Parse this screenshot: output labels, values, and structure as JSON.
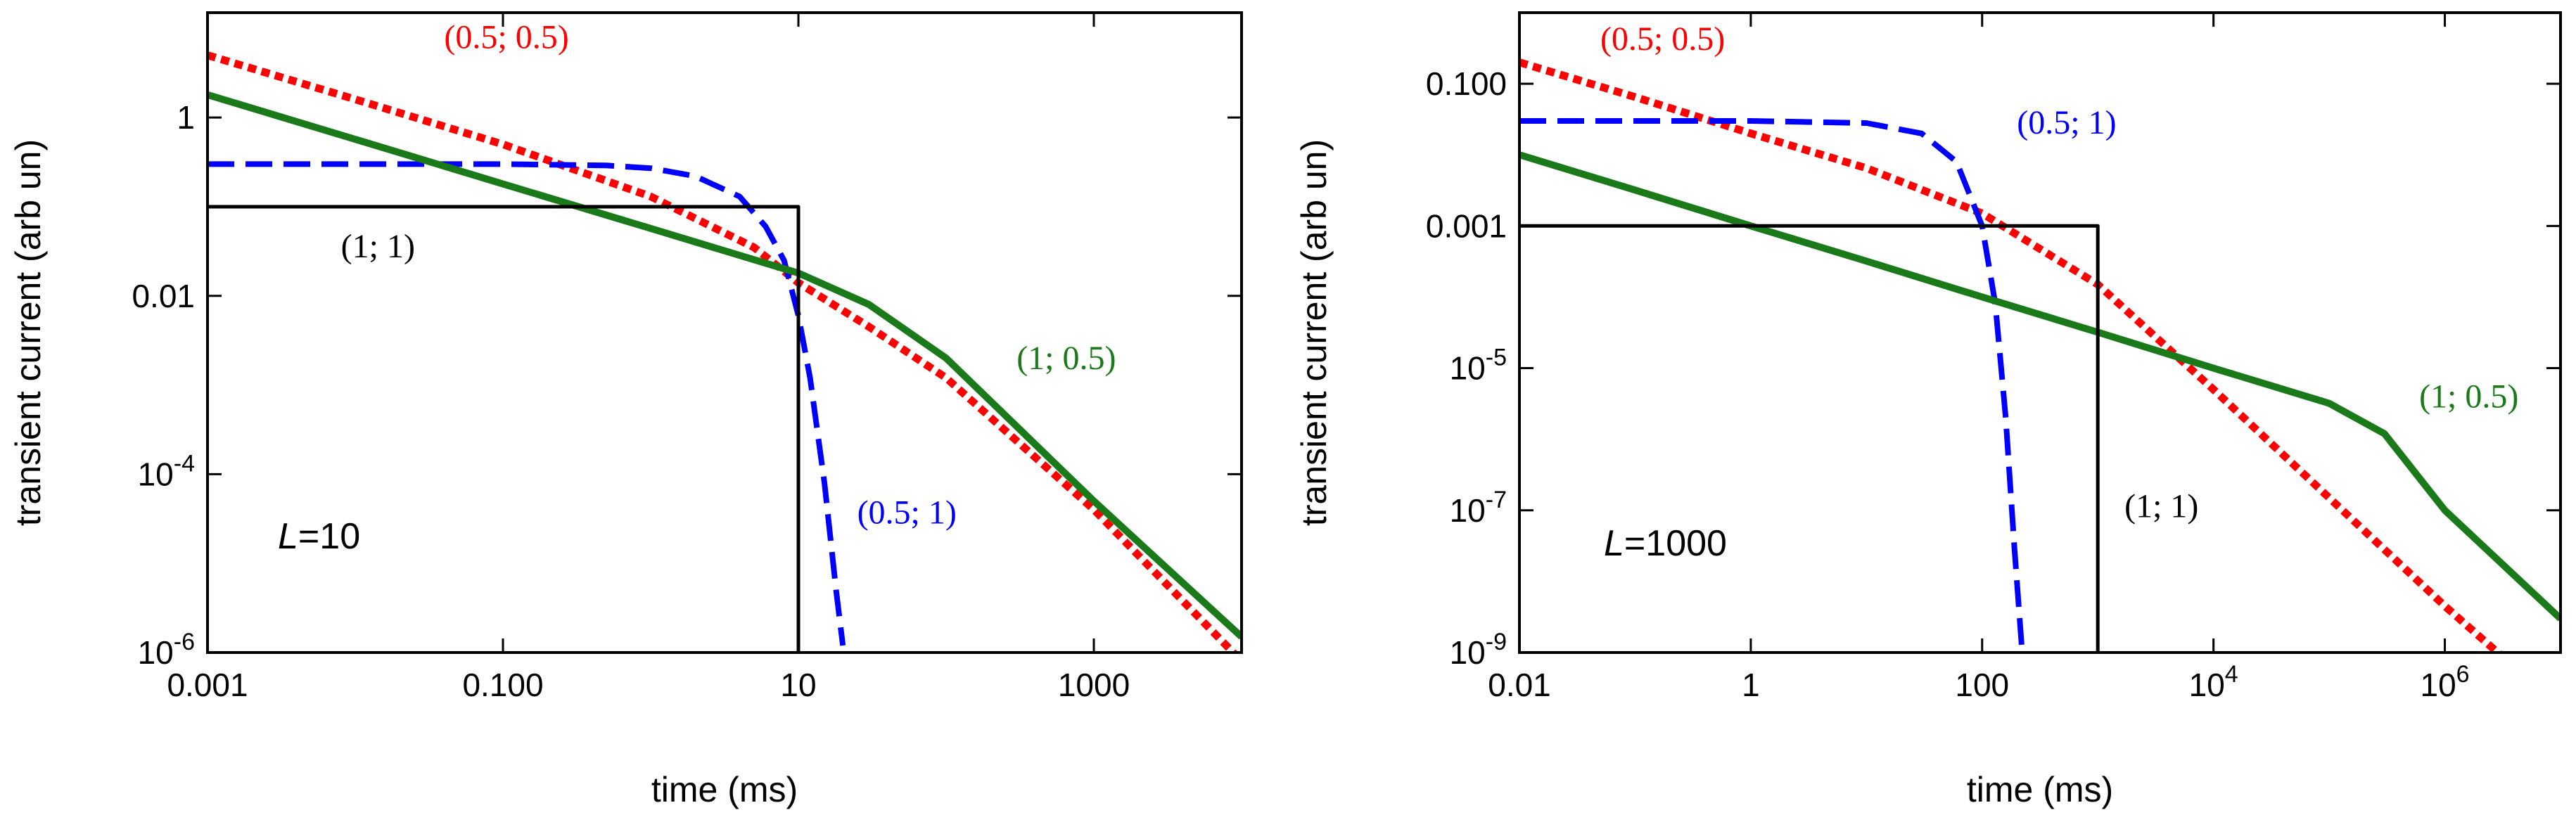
{
  "chart_data": [
    {
      "type": "line",
      "panel": "left",
      "xlabel": "time (ms)",
      "ylabel": "transient current (arb un)",
      "xscale": "log",
      "yscale": "log",
      "xlim": [
        0.001,
        10000
      ],
      "ylim": [
        1e-06,
        15
      ],
      "annotation": {
        "symbol": "L",
        "text": "=10"
      },
      "xticks": [
        {
          "value": 0.001,
          "label": "0.001"
        },
        {
          "value": 0.1,
          "label": "0.100"
        },
        {
          "value": 10,
          "label": "10"
        },
        {
          "value": 1000,
          "label": "1000"
        }
      ],
      "yticks": [
        {
          "value": 1,
          "base": "1",
          "exp": ""
        },
        {
          "value": 0.01,
          "base": "0.01",
          "exp": ""
        },
        {
          "value": 0.0001,
          "base": "10",
          "exp": "-4"
        },
        {
          "value": 1e-06,
          "base": "10",
          "exp": "-6"
        }
      ],
      "series": [
        {
          "name": "(0.5; 0.5)",
          "color": "#ff0000",
          "style": "dotted",
          "x": [
            0.001,
            0.01,
            0.1,
            1,
            5,
            10,
            30,
            100,
            1000,
            10000
          ],
          "y": [
            5.0,
            1.6,
            0.5,
            0.13,
            0.035,
            0.014,
            0.0045,
            0.0012,
            4e-05,
            8e-07
          ]
        },
        {
          "name": "(0.5; 1)",
          "color": "#0000ff",
          "style": "dashed",
          "x": [
            0.001,
            0.01,
            0.1,
            0.5,
            1,
            2,
            4,
            6,
            8,
            10,
            12,
            15,
            18,
            20
          ],
          "y": [
            0.3,
            0.3,
            0.3,
            0.29,
            0.27,
            0.22,
            0.13,
            0.06,
            0.025,
            0.006,
            0.0012,
            8e-05,
            5e-06,
            1.2e-06
          ]
        },
        {
          "name": "(1; 0.5)",
          "color": "#1a7a1a",
          "style": "solid",
          "x": [
            0.001,
            0.01,
            0.1,
            1,
            10,
            30,
            100,
            1000,
            10000
          ],
          "y": [
            1.8,
            0.57,
            0.18,
            0.057,
            0.018,
            0.008,
            0.002,
            5e-05,
            1.5e-06
          ]
        },
        {
          "name": "(1; 1)",
          "color": "#000000",
          "style": "solid",
          "x": [
            0.001,
            10,
            10
          ],
          "y": [
            0.1,
            0.1,
            1e-06
          ]
        }
      ],
      "labels": [
        {
          "text": "(0.5; 0.5)",
          "color": "#ff0000",
          "x": 0.04,
          "y": 6.0
        },
        {
          "text": "(0.5; 1)",
          "color": "#0000ff",
          "x": 25,
          "y": 2.8e-05
        },
        {
          "text": "(1; 0.5)",
          "color": "#1a7a1a",
          "x": 300,
          "y": 0.0015
        },
        {
          "text": "(1; 1)",
          "color": "#000000",
          "x": 0.008,
          "y": 0.027
        }
      ]
    },
    {
      "type": "line",
      "panel": "right",
      "xlabel": "time (ms)",
      "ylabel": "transient current (arb un)",
      "xscale": "log",
      "yscale": "log",
      "xlim": [
        0.01,
        10000000
      ],
      "ylim": [
        1e-09,
        1.0
      ],
      "annotation": {
        "symbol": "L",
        "text": "=1000"
      },
      "xticks": [
        {
          "value": 0.01,
          "base": "0.01",
          "exp": ""
        },
        {
          "value": 1,
          "base": "1",
          "exp": ""
        },
        {
          "value": 100,
          "base": "100",
          "exp": ""
        },
        {
          "value": 10000,
          "base": "10",
          "exp": "4"
        },
        {
          "value": 1000000,
          "base": "10",
          "exp": "6"
        }
      ],
      "yticks": [
        {
          "value": 0.1,
          "base": "0.100",
          "exp": ""
        },
        {
          "value": 0.001,
          "base": "0.001",
          "exp": ""
        },
        {
          "value": 1e-05,
          "base": "10",
          "exp": "-5"
        },
        {
          "value": 1e-07,
          "base": "10",
          "exp": "-7"
        },
        {
          "value": 1e-09,
          "base": "10",
          "exp": "-9"
        }
      ],
      "series": [
        {
          "name": "(0.5; 0.5)",
          "color": "#ff0000",
          "style": "dotted",
          "x": [
            0.01,
            0.1,
            1,
            10,
            100,
            1000,
            10000,
            100000,
            1000000,
            5000000
          ],
          "y": [
            0.2,
            0.065,
            0.02,
            0.0065,
            0.0015,
            0.00015,
            5e-06,
            1.5e-07,
            4.5e-09,
            4.5e-10
          ]
        },
        {
          "name": "(0.5; 1)",
          "color": "#0000ff",
          "style": "dashed",
          "x": [
            0.01,
            1,
            10,
            30,
            60,
            100,
            130,
            160,
            190,
            220
          ],
          "y": [
            0.03,
            0.03,
            0.028,
            0.02,
            0.008,
            0.001,
            8e-05,
            2e-06,
            3e-08,
            1.2e-09
          ]
        },
        {
          "name": "(1; 0.5)",
          "color": "#1a7a1a",
          "style": "solid",
          "x": [
            0.01,
            0.1,
            1,
            10,
            100,
            1000,
            10000,
            100000,
            300000,
            1000000,
            10000000
          ],
          "y": [
            0.01,
            0.0032,
            0.001,
            0.00032,
            0.0001,
            3.2e-05,
            1e-05,
            3.2e-06,
            1.2e-06,
            1e-07,
            3e-09
          ]
        },
        {
          "name": "(1; 1)",
          "color": "#000000",
          "style": "solid",
          "x": [
            0.01,
            1000,
            1000
          ],
          "y": [
            0.001,
            0.001,
            1e-09
          ]
        }
      ],
      "labels": [
        {
          "text": "(0.5; 0.5)",
          "color": "#ff0000",
          "x": 0.05,
          "y": 0.3
        },
        {
          "text": "(0.5; 1)",
          "color": "#0000ff",
          "x": 200,
          "y": 0.02
        },
        {
          "text": "(1; 0.5)",
          "color": "#1a7a1a",
          "x": 600000,
          "y": 2.8e-06
        },
        {
          "text": "(1; 1)",
          "color": "#000000",
          "x": 1700,
          "y": 8e-08
        }
      ]
    }
  ]
}
